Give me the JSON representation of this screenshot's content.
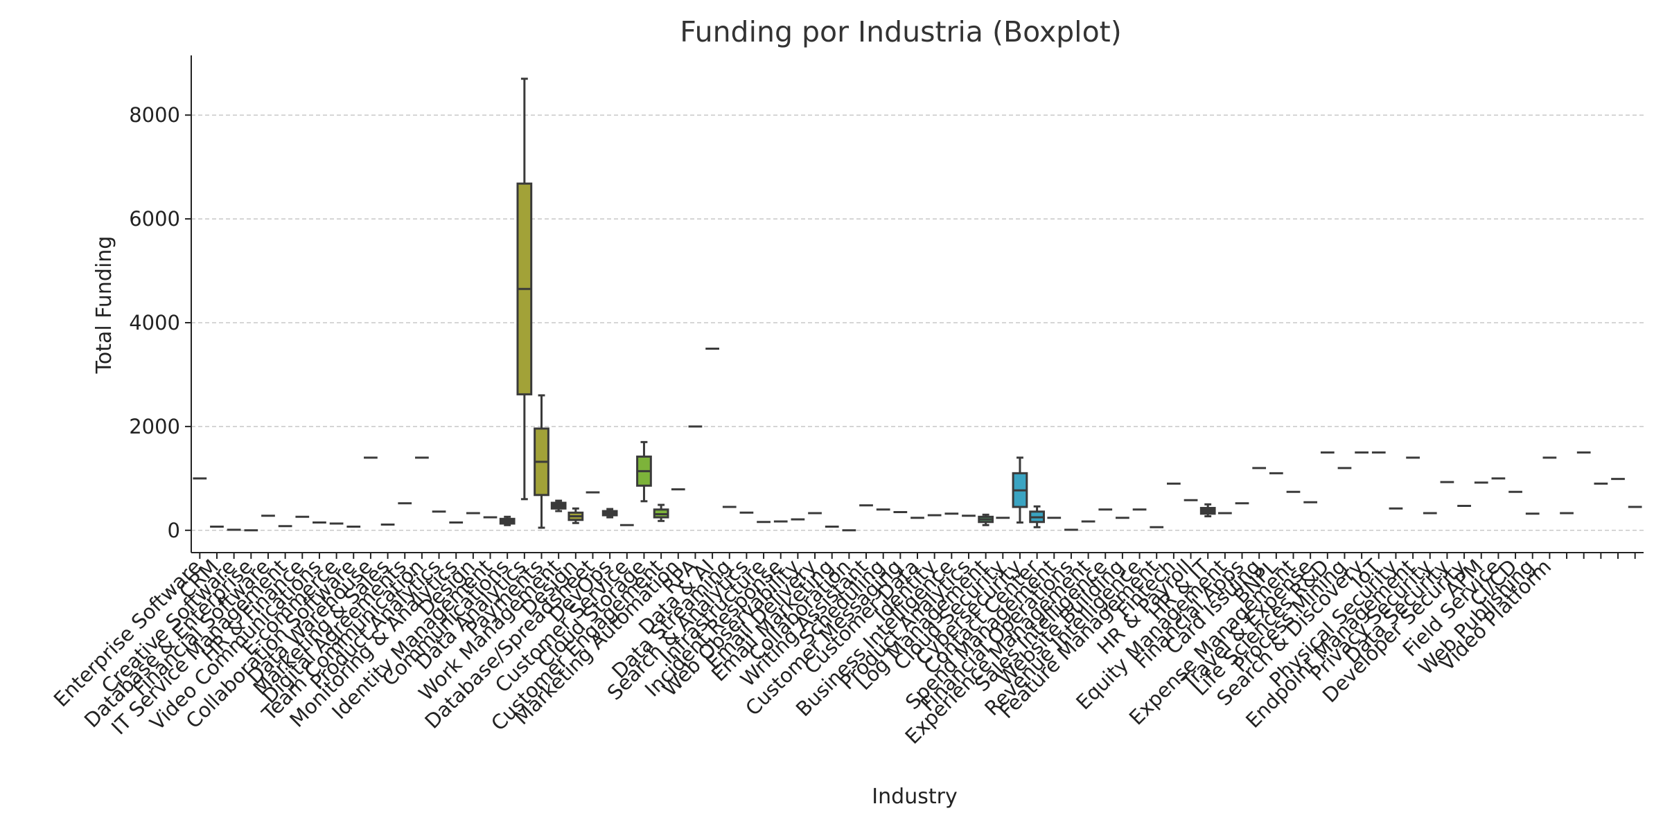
{
  "chart_data": {
    "type": "boxplot",
    "title": "Funding por Industria (Boxplot)",
    "xlabel": "Industry",
    "ylabel": "Total Funding",
    "ylim": [
      -430,
      9150
    ],
    "yticks": [
      0,
      2000,
      4000,
      6000,
      8000
    ],
    "grid": "y-dashed",
    "categories": [
      {
        "name": "Enterprise Software",
        "value": 1000
      },
      {
        "name": "CRM",
        "value": 70
      },
      {
        "name": "Creative Software",
        "value": 10
      },
      {
        "name": "Database & Enterprise",
        "value": 0
      },
      {
        "name": "Financial Software",
        "value": 280
      },
      {
        "name": "IT Service Management",
        "value": 80
      },
      {
        "name": "HR & Finance",
        "value": 260
      },
      {
        "name": "Video Communications",
        "value": 150
      },
      {
        "name": "E-commerce",
        "value": 130
      },
      {
        "name": "Collaboration Software",
        "value": 70
      },
      {
        "name": "Data Warehouse",
        "value": 1400
      },
      {
        "name": "Marketing & Sales",
        "value": 110
      },
      {
        "name": "Digital Agreements",
        "value": 520
      },
      {
        "name": "Team Communication",
        "value": 1400
      },
      {
        "name": "Product Analytics",
        "value": 360
      },
      {
        "name": "Monitoring & Analytics",
        "value": 150
      },
      {
        "name": "Design",
        "value": 330
      },
      {
        "name": "Identity Management",
        "value": 250
      },
      {
        "name": "Communications",
        "box": {
          "min": 100,
          "q1": 130,
          "median": 170,
          "q3": 220,
          "max": 260
        },
        "color": "#3a3a3a"
      },
      {
        "name": "Data Analytics",
        "box": {
          "min": 600,
          "q1": 2620,
          "median": 4650,
          "q3": 6680,
          "max": 8700
        },
        "color": "#a2a238"
      },
      {
        "name": "Payments",
        "box": {
          "min": 50,
          "q1": 680,
          "median": 1320,
          "q3": 1960,
          "max": 2600
        },
        "color": "#a2a238"
      },
      {
        "name": "Work Management",
        "box": {
          "min": 370,
          "q1": 420,
          "median": 470,
          "q3": 530,
          "max": 570
        },
        "color": "#3a3a3a"
      },
      {
        "name": "Design",
        "box": {
          "min": 140,
          "q1": 200,
          "median": 270,
          "q3": 340,
          "max": 420
        },
        "color": "#a2a238"
      },
      {
        "name": "Database/Spreadsheet",
        "value": 730
      },
      {
        "name": "DevOps",
        "box": {
          "min": 250,
          "q1": 290,
          "median": 330,
          "q3": 370,
          "max": 410
        },
        "color": "#3a3a3a"
      },
      {
        "name": "Customer Service",
        "value": 100
      },
      {
        "name": "Cloud Storage",
        "box": {
          "min": 560,
          "q1": 860,
          "median": 1140,
          "q3": 1420,
          "max": 1700
        },
        "color": "#7db33a"
      },
      {
        "name": "Customer Engagement",
        "box": {
          "min": 180,
          "q1": 250,
          "median": 310,
          "q3": 400,
          "max": 490
        },
        "color": "#7db33a"
      },
      {
        "name": "Marketing Automation",
        "value": 790
      },
      {
        "name": "RPA",
        "value": 2000
      },
      {
        "name": "Data & AI",
        "value": 3500
      },
      {
        "name": "Data Streaming",
        "value": 450
      },
      {
        "name": "Search & Analytics",
        "value": 340
      },
      {
        "name": "Infrastructure",
        "value": 160
      },
      {
        "name": "Incident Response",
        "value": 170
      },
      {
        "name": "Web Observability",
        "value": 210
      },
      {
        "name": "Email Delivery",
        "value": 330
      },
      {
        "name": "Email Marketing",
        "value": 70
      },
      {
        "name": "Collaboration",
        "value": 0
      },
      {
        "name": "Writing Assistant",
        "value": 480
      },
      {
        "name": "Scheduling",
        "value": 400
      },
      {
        "name": "Customer Messaging",
        "value": 350
      },
      {
        "name": "Customer Data",
        "value": 240
      },
      {
        "name": "Identity",
        "value": 290
      },
      {
        "name": "Business Intelligence",
        "value": 320
      },
      {
        "name": "Product Analytics",
        "value": 280
      },
      {
        "name": "Log Management",
        "box": {
          "min": 100,
          "q1": 160,
          "median": 210,
          "q3": 260,
          "max": 300
        },
        "color": "#4e8f5f"
      },
      {
        "name": "Cloud Security",
        "value": 240
      },
      {
        "name": "Cybersecurity",
        "box": {
          "min": 150,
          "q1": 450,
          "median": 770,
          "q3": 1100,
          "max": 1400
        },
        "color": "#3aa4c2"
      },
      {
        "name": "Contact Center",
        "box": {
          "min": 60,
          "q1": 160,
          "median": 250,
          "q3": 360,
          "max": 460
        },
        "color": "#3aa4c2"
      },
      {
        "name": "Spend Management",
        "value": 240
      },
      {
        "name": "Financial Operations",
        "value": 10
      },
      {
        "name": "Experience Management",
        "value": 170
      },
      {
        "name": "Sales Intelligence",
        "value": 400
      },
      {
        "name": "Website Building",
        "value": 240
      },
      {
        "name": "Revenue Intelligence",
        "value": 400
      },
      {
        "name": "Feature Management",
        "value": 60
      },
      {
        "name": "Fintech",
        "value": 900
      },
      {
        "name": "HR & Payroll",
        "value": 580
      },
      {
        "name": "HR & IT",
        "box": {
          "min": 270,
          "q1": 320,
          "median": 370,
          "q3": 430,
          "max": 500
        },
        "color": "#3a3a3a"
      },
      {
        "name": "Equity Management",
        "value": 330
      },
      {
        "name": "Financial Apps",
        "value": 520
      },
      {
        "name": "Card Issuing",
        "value": 1200
      },
      {
        "name": "BNPL",
        "value": 1100
      },
      {
        "name": "Expense Management",
        "value": 740
      },
      {
        "name": "Travel & Expense",
        "value": 540
      },
      {
        "name": "Life Sciences R&D",
        "value": 1500
      },
      {
        "name": "Process Mining",
        "value": 1200
      },
      {
        "name": "Search & Discovery",
        "value": 1500
      },
      {
        "name": "IoT",
        "value": 1500
      },
      {
        "name": "Physical Security",
        "value": 420
      },
      {
        "name": "Endpoint Management",
        "value": 1400
      },
      {
        "name": "Privacy Security",
        "value": 330
      },
      {
        "name": "Data Security",
        "value": 930
      },
      {
        "name": "Developer Security",
        "value": 470
      },
      {
        "name": "APM",
        "value": 920
      },
      {
        "name": "Field Service",
        "value": 1000
      },
      {
        "name": "CI/CD",
        "value": 740
      },
      {
        "name": "Web Publishing",
        "value": 320
      },
      {
        "name": "Video Platform",
        "value": 1400
      },
      {
        "name": "",
        "value": 330
      },
      {
        "name": "",
        "value": 1500
      },
      {
        "name": "",
        "value": 900
      },
      {
        "name": "",
        "value": 990
      },
      {
        "name": "",
        "value": 450
      }
    ]
  }
}
